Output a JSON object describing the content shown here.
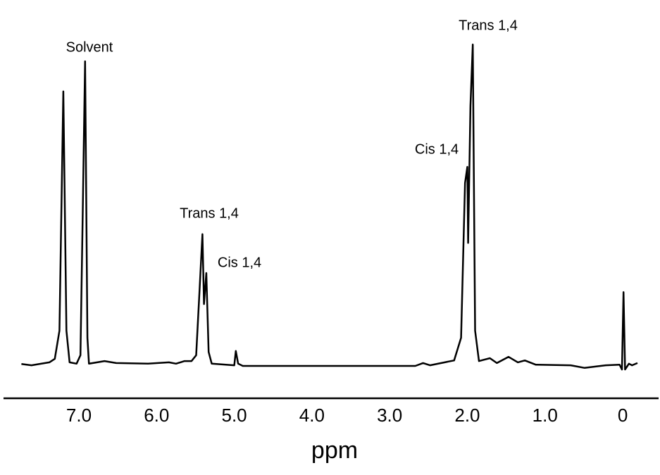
{
  "chart_data": {
    "type": "line",
    "x_label": "ppm",
    "xlim": [
      7.97,
      -0.48
    ],
    "ylim": [
      -10,
      100
    ],
    "xticks": [
      {
        "value": 7,
        "label": "7.0"
      },
      {
        "value": 6,
        "label": "6.0"
      },
      {
        "value": 5,
        "label": "5.0"
      },
      {
        "value": 4,
        "label": "4.0"
      },
      {
        "value": 3,
        "label": "3.0"
      },
      {
        "value": 2,
        "label": "2.0"
      },
      {
        "value": 1,
        "label": "1.0"
      },
      0
    ],
    "grid": false,
    "annotations": [
      "Solvent",
      "Trans 1,4",
      "Cis 1,4",
      "Trans 1,4",
      "Cis 1,4"
    ],
    "series": [
      {
        "color": "#000000",
        "x": [
          7.74,
          7.61,
          7.38,
          7.31,
          7.25,
          7.2,
          7.16,
          7.12,
          7.03,
          6.98,
          6.95,
          6.92,
          6.89,
          6.87,
          6.67,
          6.52,
          6.11,
          5.84,
          5.75,
          5.64,
          5.55,
          5.49,
          5.45,
          5.41,
          5.39,
          5.36,
          5.33,
          5.29,
          5.0,
          4.98,
          4.95,
          4.89,
          2.67,
          2.57,
          2.48,
          2.17,
          2.08,
          2.03,
          2.0,
          1.99,
          1.96,
          1.93,
          1.9,
          1.85,
          1.71,
          1.62,
          1.47,
          1.35,
          1.26,
          1.12,
          0.67,
          0.49,
          0.22,
          0.04,
          0.01,
          -0.01,
          -0.03,
          -0.08,
          -0.12,
          -0.19
        ],
        "values": [
          0.6,
          0.2,
          1.1,
          2.2,
          10.9,
          84.8,
          10.9,
          1.1,
          0.7,
          3.3,
          47.8,
          94.1,
          8.7,
          0.7,
          1.5,
          0.9,
          0.7,
          1.1,
          0.7,
          1.5,
          1.5,
          3.3,
          21.7,
          40.7,
          19.1,
          28.7,
          4.3,
          0.7,
          0.2,
          4.6,
          0.7,
          0,
          0,
          0.9,
          0.2,
          1.7,
          8.7,
          56.5,
          61.5,
          38.0,
          80.4,
          99.3,
          10.9,
          1.5,
          2.4,
          0.9,
          2.8,
          1.1,
          1.7,
          0.4,
          0.2,
          -0.6,
          0.2,
          0.4,
          -1.1,
          22.8,
          -1.1,
          0.7,
          0.2,
          0.9
        ]
      }
    ]
  }
}
